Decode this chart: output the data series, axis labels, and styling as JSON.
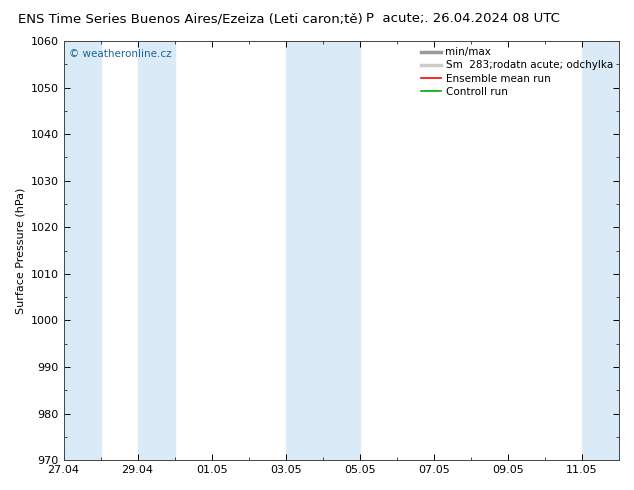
{
  "title_left": "ENS Time Series Buenos Aires/Ezeiza (Leti caron;tě)",
  "title_right": "P  acute;. 26.04.2024 08 UTC",
  "ylabel": "Surface Pressure (hPa)",
  "ylim": [
    970,
    1060
  ],
  "yticks": [
    970,
    980,
    990,
    1000,
    1010,
    1020,
    1030,
    1040,
    1050,
    1060
  ],
  "xlim": [
    0,
    15
  ],
  "xtick_labels": [
    "27.04",
    "29.04",
    "01.05",
    "03.05",
    "05.05",
    "07.05",
    "09.05",
    "11.05"
  ],
  "xtick_positions_days": [
    0,
    2,
    4,
    6,
    8,
    10,
    12,
    14
  ],
  "shaded_bands": [
    {
      "start_day": 0,
      "end_day": 1
    },
    {
      "start_day": 2,
      "end_day": 3
    },
    {
      "start_day": 6,
      "end_day": 7
    },
    {
      "start_day": 7,
      "end_day": 8
    },
    {
      "start_day": 14,
      "end_day": 15
    }
  ],
  "shade_color": "#daeaf7",
  "background_color": "#ffffff",
  "plot_bg_color": "#ffffff",
  "watermark": "© weatheronline.cz",
  "legend_items": [
    {
      "label": "min/max",
      "color": "#999999",
      "lw": 2.5
    },
    {
      "label": "Sm  283;rodatn acute; odchylka",
      "color": "#cccccc",
      "lw": 2.5
    },
    {
      "label": "Ensemble mean run",
      "color": "#ff0000",
      "lw": 1.2
    },
    {
      "label": "Controll run",
      "color": "#00aa00",
      "lw": 1.2
    }
  ],
  "title_fontsize": 9.5,
  "tick_fontsize": 8,
  "ylabel_fontsize": 8,
  "legend_fontsize": 7.5,
  "watermark_fontsize": 7.5,
  "watermark_color": "#1a6699"
}
